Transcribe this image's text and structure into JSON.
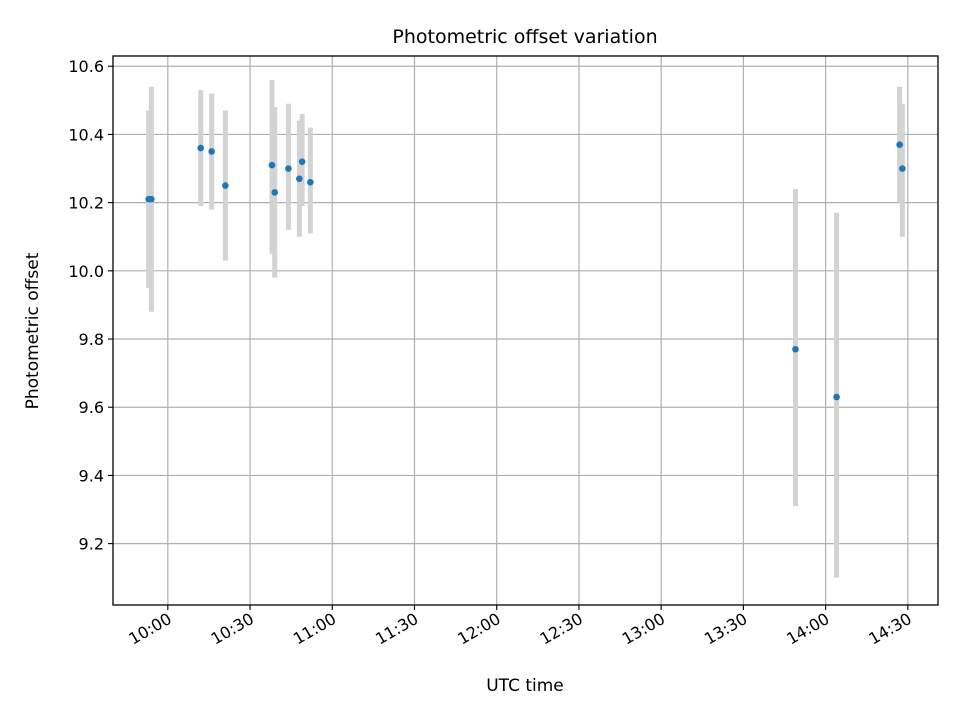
{
  "chart_data": {
    "type": "scatter",
    "title": "Photometric offset variation",
    "xlabel": "UTC time",
    "ylabel": "Photometric offset",
    "xlim": [
      "09:40",
      "14:41"
    ],
    "ylim": [
      9.02,
      10.63
    ],
    "grid": true,
    "x_ticks": [
      "10:00",
      "10:30",
      "11:00",
      "11:30",
      "12:00",
      "12:30",
      "13:00",
      "13:30",
      "14:00",
      "14:30"
    ],
    "y_ticks": [
      "9.2",
      "9.4",
      "9.6",
      "9.8",
      "10.0",
      "10.2",
      "10.4",
      "10.6"
    ],
    "series": [
      {
        "points": [
          {
            "x": "09:53",
            "y": 10.21,
            "ylo": 9.95,
            "yhi": 10.47
          },
          {
            "x": "09:54",
            "y": 10.21,
            "ylo": 9.88,
            "yhi": 10.54
          },
          {
            "x": "10:12",
            "y": 10.36,
            "ylo": 10.19,
            "yhi": 10.53
          },
          {
            "x": "10:16",
            "y": 10.35,
            "ylo": 10.18,
            "yhi": 10.52
          },
          {
            "x": "10:21",
            "y": 10.25,
            "ylo": 10.03,
            "yhi": 10.47
          },
          {
            "x": "10:38",
            "y": 10.31,
            "ylo": 10.05,
            "yhi": 10.56
          },
          {
            "x": "10:39",
            "y": 10.23,
            "ylo": 9.98,
            "yhi": 10.48
          },
          {
            "x": "10:44",
            "y": 10.3,
            "ylo": 10.12,
            "yhi": 10.49
          },
          {
            "x": "10:48",
            "y": 10.27,
            "ylo": 10.1,
            "yhi": 10.44
          },
          {
            "x": "10:49",
            "y": 10.32,
            "ylo": 10.19,
            "yhi": 10.46
          },
          {
            "x": "10:52",
            "y": 10.26,
            "ylo": 10.11,
            "yhi": 10.42
          },
          {
            "x": "13:49",
            "y": 9.77,
            "ylo": 9.31,
            "yhi": 10.24
          },
          {
            "x": "14:04",
            "y": 9.63,
            "ylo": 9.1,
            "yhi": 10.17
          },
          {
            "x": "14:27",
            "y": 10.37,
            "ylo": 10.2,
            "yhi": 10.54
          },
          {
            "x": "14:28",
            "y": 10.3,
            "ylo": 10.1,
            "yhi": 10.49
          }
        ]
      }
    ]
  },
  "colors": {
    "point": "#1f77b4",
    "errorbar": "#d3d3d3",
    "grid": "#b0b0b0"
  }
}
